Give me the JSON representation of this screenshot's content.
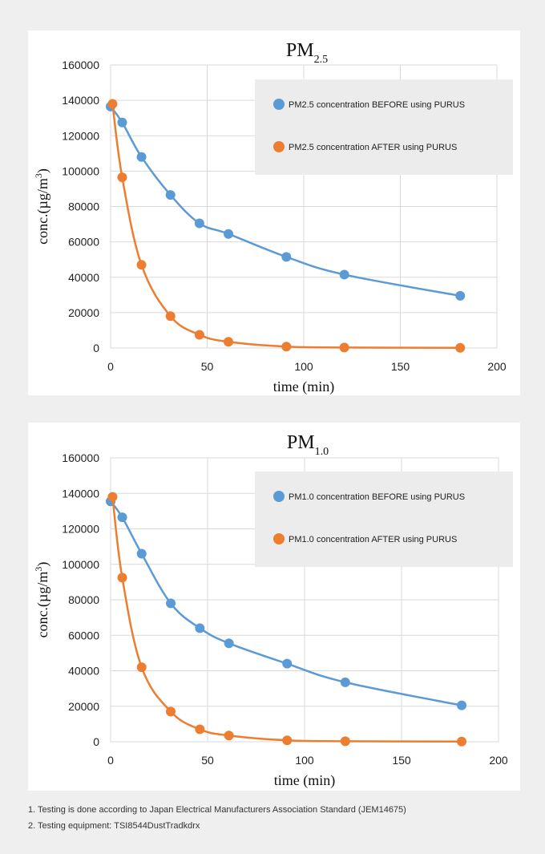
{
  "chart_data": [
    {
      "type": "line",
      "title": "PM",
      "title_subscript": "2.5",
      "xlabel": "time (min)",
      "ylabel": "conc.(µg/m",
      "ylabel_superscript": "3",
      "ylabel_close": ")",
      "xlim": [
        0,
        200
      ],
      "ylim": [
        0,
        160000
      ],
      "xticks": [
        "0",
        "50",
        "100",
        "150",
        "200"
      ],
      "yticks": [
        "0",
        "20000",
        "40000",
        "60000",
        "80000",
        "100000",
        "120000",
        "140000",
        "160000"
      ],
      "grid": true,
      "legend_position": "top-right",
      "series": [
        {
          "name": "PM2.5 concentration BEFORE using PURUS",
          "color": "#5b9bd5",
          "x": [
            0,
            6,
            16,
            31,
            46,
            61,
            91,
            121,
            181
          ],
          "y": [
            136500,
            127500,
            108000,
            86500,
            70500,
            64500,
            51500,
            41500,
            29500
          ]
        },
        {
          "name": "PM2.5 concentration AFTER using PURUS",
          "color": "#ed7d31",
          "x": [
            1,
            6,
            16,
            31,
            46,
            61,
            91,
            121,
            181
          ],
          "y": [
            138000,
            96500,
            47000,
            18000,
            7500,
            3500,
            800,
            300,
            100
          ]
        }
      ]
    },
    {
      "type": "line",
      "title": "PM",
      "title_subscript": "1.0",
      "xlabel": "time (min)",
      "ylabel": "conc.(µg/m",
      "ylabel_superscript": "3",
      "ylabel_close": ")",
      "xlim": [
        0,
        200
      ],
      "ylim": [
        0,
        160000
      ],
      "xticks": [
        "0",
        "50",
        "100",
        "150",
        "200"
      ],
      "yticks": [
        "0",
        "20000",
        "40000",
        "60000",
        "80000",
        "100000",
        "120000",
        "140000",
        "160000"
      ],
      "grid": true,
      "legend_position": "top-right",
      "series": [
        {
          "name": "PM1.0 concentration BEFORE using PURUS",
          "color": "#5b9bd5",
          "x": [
            0,
            6,
            16,
            31,
            46,
            61,
            91,
            121,
            181
          ],
          "y": [
            135500,
            126500,
            106000,
            78000,
            64000,
            55500,
            44000,
            33500,
            20500
          ]
        },
        {
          "name": "PM1.0 concentration AFTER using PURUS",
          "color": "#ed7d31",
          "x": [
            1,
            6,
            16,
            31,
            46,
            61,
            91,
            121,
            181
          ],
          "y": [
            138000,
            92500,
            42000,
            17000,
            7000,
            3500,
            800,
            300,
            100
          ]
        }
      ]
    }
  ],
  "footnotes": [
    "1. Testing is done according to Japan Electrical Manufacturers Association Standard (JEM14675)",
    "2. Testing equipment: TSI8544DustTradkdrx"
  ]
}
